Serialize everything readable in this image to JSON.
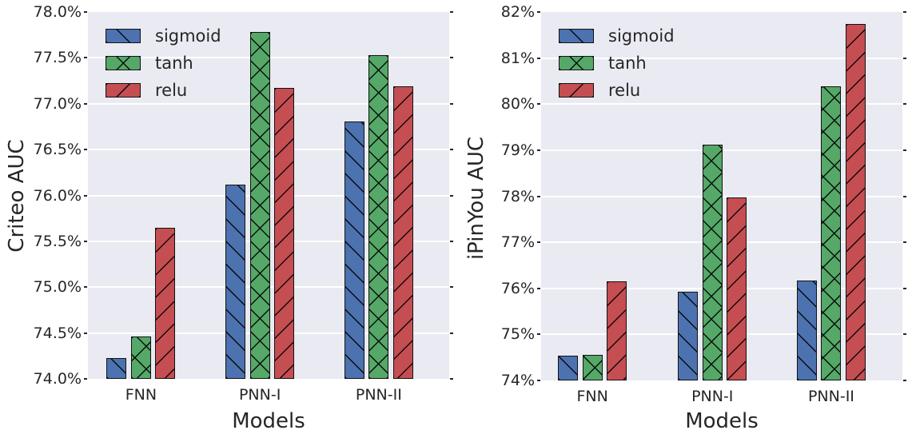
{
  "figure": {
    "background": "#ffffff",
    "plot_background": "#EAEAF2",
    "grid_color": "#ffffff",
    "text_color": "#262626",
    "bar_edge_color": "#121212"
  },
  "chart_data": [
    {
      "type": "bar",
      "title": "",
      "ylabel": "Criteo AUC",
      "xlabel": "Models",
      "categories": [
        "FNN",
        "PNN-I",
        "PNN-II"
      ],
      "ylim": [
        74.0,
        78.0
      ],
      "ytick_labels": [
        "78.0%",
        "77.5%",
        "77.0%",
        "76.5%",
        "76.0%",
        "75.5%",
        "75.0%",
        "74.5%",
        "74.0%"
      ],
      "unit": "percent",
      "grid": true,
      "legend_position": "upper-left",
      "series": [
        {
          "name": "sigmoid",
          "color": "#4C72B0",
          "hatch": "\\",
          "values": [
            74.23,
            76.12,
            76.81
          ]
        },
        {
          "name": "tanh",
          "color": "#55A868",
          "hatch": "x",
          "values": [
            74.46,
            77.78,
            77.53
          ]
        },
        {
          "name": "relu",
          "color": "#C44E52",
          "hatch": "/",
          "values": [
            75.65,
            77.17,
            77.19
          ]
        }
      ]
    },
    {
      "type": "bar",
      "title": "",
      "ylabel": "iPinYou AUC",
      "xlabel": "Models",
      "categories": [
        "FNN",
        "PNN-I",
        "PNN-II"
      ],
      "ylim": [
        74.0,
        82.0
      ],
      "ytick_labels": [
        "82%",
        "81%",
        "80%",
        "79%",
        "78%",
        "77%",
        "76%",
        "75%",
        "74%"
      ],
      "unit": "percent",
      "grid": true,
      "legend_position": "upper-left",
      "series": [
        {
          "name": "sigmoid",
          "color": "#4C72B0",
          "hatch": "\\",
          "values": [
            74.53,
            75.93,
            76.17
          ]
        },
        {
          "name": "tanh",
          "color": "#55A868",
          "hatch": "x",
          "values": [
            74.55,
            79.12,
            80.38
          ]
        },
        {
          "name": "relu",
          "color": "#C44E52",
          "hatch": "/",
          "values": [
            76.16,
            77.97,
            81.74
          ]
        }
      ]
    }
  ]
}
